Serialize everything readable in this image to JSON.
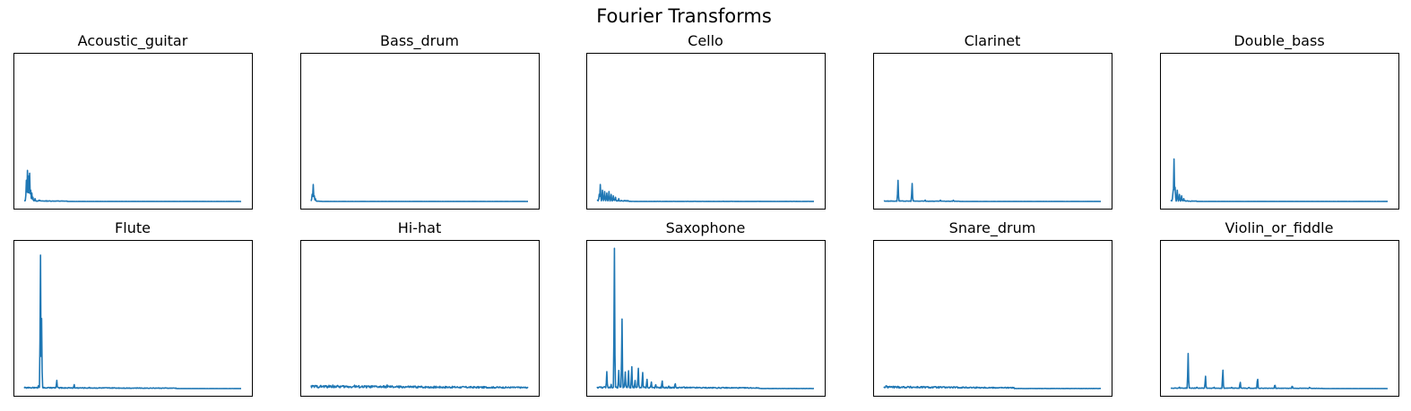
{
  "figure": {
    "title": "Fourier Transforms"
  },
  "chart_data": {
    "type": "line",
    "title": "Fourier Transforms",
    "line_color": "#1f77b4",
    "grid": false,
    "axis_ticks": false,
    "layout": "2x5",
    "note_units": "x = relative frequency bin (0-1), y = relative magnitude (0-1), normalized per panel",
    "panels": [
      {
        "name": "Acoustic_guitar",
        "ylim": [
          0,
          1
        ],
        "peaks": [
          [
            0.01,
            0.15
          ],
          [
            0.015,
            0.22
          ],
          [
            0.02,
            0.18
          ],
          [
            0.025,
            0.2
          ],
          [
            0.03,
            0.08
          ],
          [
            0.035,
            0.06
          ],
          [
            0.04,
            0.03
          ],
          [
            0.05,
            0.02
          ],
          [
            0.07,
            0.01
          ]
        ],
        "noise": 0.006,
        "noise_to": 0.2
      },
      {
        "name": "Bass_drum",
        "ylim": [
          0,
          1
        ],
        "peaks": [
          [
            0.005,
            0.05
          ],
          [
            0.01,
            0.12
          ],
          [
            0.015,
            0.04
          ],
          [
            0.02,
            0.02
          ]
        ],
        "noise": 0.004,
        "noise_to": 0.05
      },
      {
        "name": "Cello",
        "ylim": [
          0,
          1
        ],
        "peaks": [
          [
            0.01,
            0.05
          ],
          [
            0.015,
            0.12
          ],
          [
            0.025,
            0.08
          ],
          [
            0.035,
            0.07
          ],
          [
            0.045,
            0.06
          ],
          [
            0.055,
            0.07
          ],
          [
            0.065,
            0.05
          ],
          [
            0.075,
            0.04
          ],
          [
            0.085,
            0.03
          ],
          [
            0.1,
            0.02
          ]
        ],
        "noise": 0.01,
        "noise_to": 0.15
      },
      {
        "name": "Clarinet",
        "ylim": [
          0,
          1
        ],
        "peaks": [
          [
            0.065,
            0.15
          ],
          [
            0.13,
            0.13
          ],
          [
            0.19,
            0.01
          ],
          [
            0.26,
            0.01
          ],
          [
            0.32,
            0.01
          ]
        ],
        "noise": 0.004,
        "noise_to": 0.35
      },
      {
        "name": "Double_bass",
        "ylim": [
          0,
          1
        ],
        "peaks": [
          [
            0.01,
            0.06
          ],
          [
            0.015,
            0.3
          ],
          [
            0.02,
            0.1
          ],
          [
            0.03,
            0.08
          ],
          [
            0.04,
            0.05
          ],
          [
            0.05,
            0.04
          ],
          [
            0.06,
            0.02
          ]
        ],
        "noise": 0.006,
        "noise_to": 0.12
      },
      {
        "name": "Flute",
        "ylim": [
          0,
          1
        ],
        "peaks": [
          [
            0.04,
            0.01
          ],
          [
            0.065,
            0.02
          ],
          [
            0.075,
            0.95
          ],
          [
            0.08,
            0.5
          ],
          [
            0.15,
            0.06
          ],
          [
            0.23,
            0.03
          ],
          [
            0.3,
            0.01
          ]
        ],
        "noise": 0.008,
        "noise_to": 0.7
      },
      {
        "name": "Hi-hat",
        "ylim": [
          0,
          1
        ],
        "peaks": [
          [
            0.1,
            0.025
          ],
          [
            0.2,
            0.025
          ],
          [
            0.35,
            0.03
          ],
          [
            0.5,
            0.02
          ],
          [
            0.7,
            0.015
          ]
        ],
        "noise": 0.02,
        "noise_to": 1.0
      },
      {
        "name": "Saxophone",
        "ylim": [
          0,
          1
        ],
        "peaks": [
          [
            0.045,
            0.12
          ],
          [
            0.065,
            0.03
          ],
          [
            0.08,
            1.0
          ],
          [
            0.1,
            0.13
          ],
          [
            0.115,
            0.5
          ],
          [
            0.13,
            0.12
          ],
          [
            0.145,
            0.13
          ],
          [
            0.16,
            0.16
          ],
          [
            0.175,
            0.06
          ],
          [
            0.19,
            0.15
          ],
          [
            0.21,
            0.12
          ],
          [
            0.23,
            0.07
          ],
          [
            0.25,
            0.05
          ],
          [
            0.27,
            0.03
          ],
          [
            0.3,
            0.06
          ],
          [
            0.33,
            0.02
          ],
          [
            0.36,
            0.04
          ],
          [
            0.4,
            0.015
          ]
        ],
        "noise": 0.012,
        "noise_to": 0.75
      },
      {
        "name": "Snare_drum",
        "ylim": [
          0,
          1
        ],
        "peaks": [
          [
            0.01,
            0.02
          ],
          [
            0.05,
            0.015
          ],
          [
            0.15,
            0.012
          ],
          [
            0.3,
            0.01
          ]
        ],
        "noise": 0.015,
        "noise_to": 0.6
      },
      {
        "name": "Violin_or_fiddle",
        "ylim": [
          0,
          1
        ],
        "peaks": [
          [
            0.04,
            0.01
          ],
          [
            0.08,
            0.25
          ],
          [
            0.12,
            0.01
          ],
          [
            0.16,
            0.09
          ],
          [
            0.2,
            0.01
          ],
          [
            0.24,
            0.14
          ],
          [
            0.28,
            0.01
          ],
          [
            0.32,
            0.05
          ],
          [
            0.36,
            0.01
          ],
          [
            0.4,
            0.08
          ],
          [
            0.48,
            0.03
          ],
          [
            0.56,
            0.02
          ],
          [
            0.64,
            0.01
          ]
        ],
        "noise": 0.005,
        "noise_to": 0.7
      }
    ]
  }
}
